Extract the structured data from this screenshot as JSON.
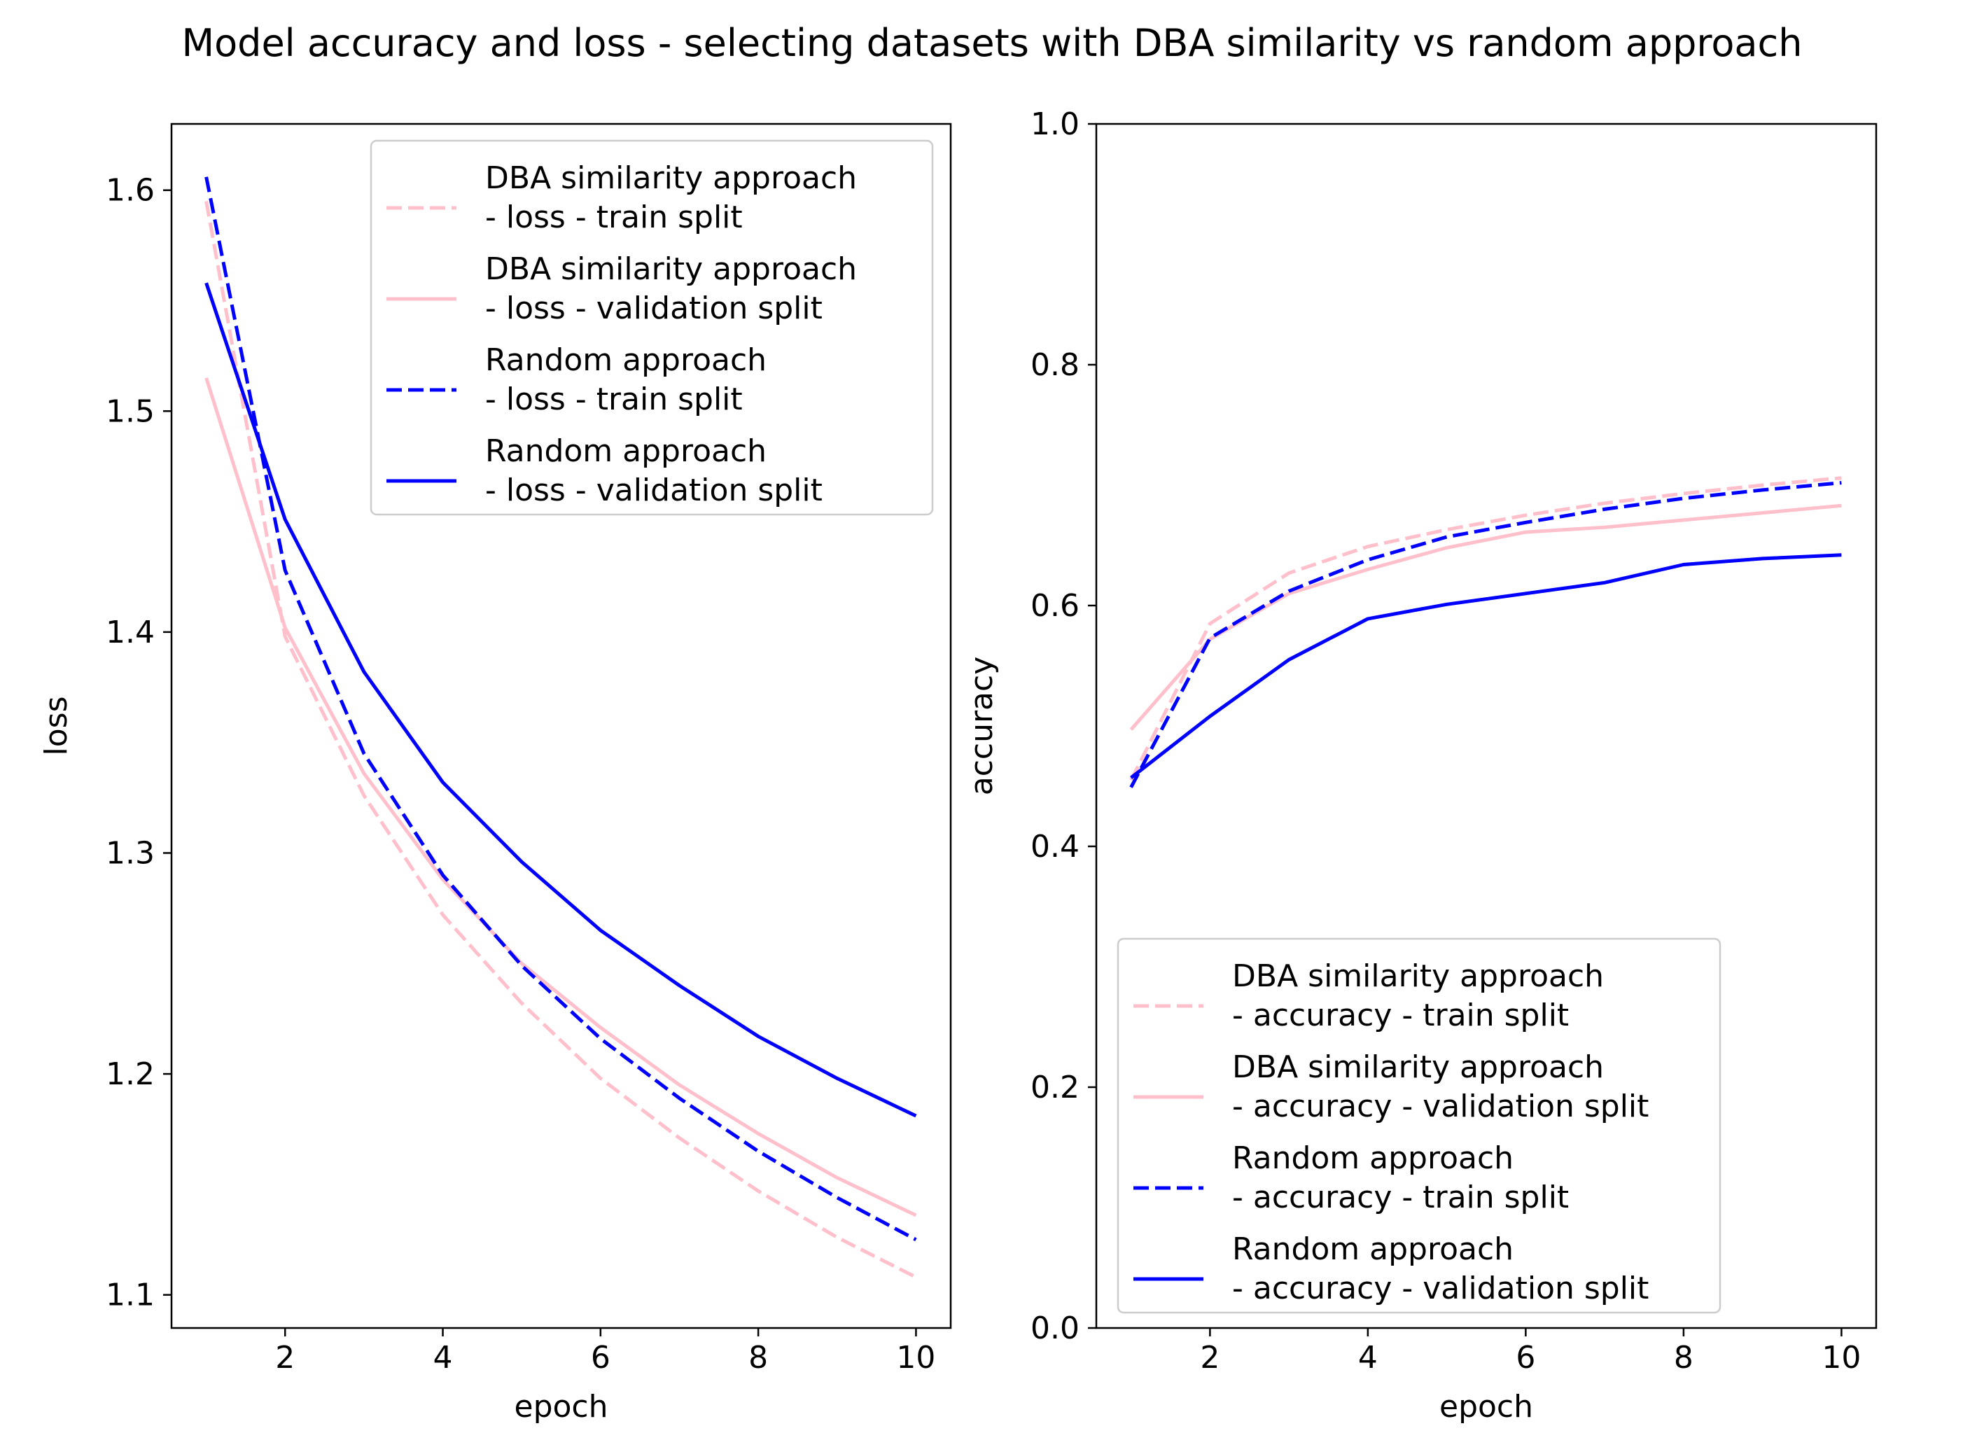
{
  "figure": {
    "title": "Model accuracy and loss - selecting datasets with DBA similarity vs random approach"
  },
  "chart_data": [
    {
      "type": "line",
      "xlabel": "epoch",
      "ylabel": "loss",
      "xlim": [
        0.56,
        10.44
      ],
      "ylim": [
        1.085,
        1.63
      ],
      "xticks": [
        2,
        4,
        6,
        8,
        10
      ],
      "yticks": [
        1.1,
        1.2,
        1.3,
        1.4,
        1.5,
        1.6
      ],
      "xtick_labels": [
        "2",
        "4",
        "6",
        "8",
        "10"
      ],
      "ytick_labels": [
        "1.1",
        "1.2",
        "1.3",
        "1.4",
        "1.5",
        "1.6"
      ],
      "grid": false,
      "legend_position": "upper right",
      "x": [
        1,
        2,
        3,
        4,
        5,
        6,
        7,
        8,
        9,
        10
      ],
      "series": [
        {
          "name": "DBA similarity approach\n- loss - train split",
          "color": "#ffc0cb",
          "style": "dashed",
          "values": [
            1.595,
            1.398,
            1.326,
            1.272,
            1.232,
            1.198,
            1.171,
            1.147,
            1.126,
            1.108
          ]
        },
        {
          "name": "DBA similarity approach\n- loss - validation split",
          "color": "#ffc0cb",
          "style": "solid",
          "values": [
            1.515,
            1.402,
            1.336,
            1.288,
            1.25,
            1.221,
            1.195,
            1.173,
            1.153,
            1.136
          ]
        },
        {
          "name": "Random approach\n- loss - train split",
          "color": "#0000ff",
          "style": "dashed",
          "values": [
            1.606,
            1.428,
            1.345,
            1.29,
            1.249,
            1.216,
            1.189,
            1.165,
            1.144,
            1.125
          ]
        },
        {
          "name": "Random approach\n- loss - validation split",
          "color": "#0000ff",
          "style": "solid",
          "values": [
            1.558,
            1.451,
            1.382,
            1.332,
            1.296,
            1.265,
            1.24,
            1.217,
            1.198,
            1.181
          ]
        }
      ]
    },
    {
      "type": "line",
      "xlabel": "epoch",
      "ylabel": "accuracy",
      "xlim": [
        0.56,
        10.44
      ],
      "ylim": [
        0.0,
        1.0
      ],
      "xticks": [
        2,
        4,
        6,
        8,
        10
      ],
      "yticks": [
        0.0,
        0.2,
        0.4,
        0.6,
        0.8,
        1.0
      ],
      "xtick_labels": [
        "2",
        "4",
        "6",
        "8",
        "10"
      ],
      "ytick_labels": [
        "0.0",
        "0.2",
        "0.4",
        "0.6",
        "0.8",
        "1.0"
      ],
      "grid": false,
      "legend_position": "lower right",
      "x": [
        1,
        2,
        3,
        4,
        5,
        6,
        7,
        8,
        9,
        10
      ],
      "series": [
        {
          "name": "DBA similarity approach\n- accuracy - train split",
          "color": "#ffc0cb",
          "style": "dashed",
          "values": [
            0.455,
            0.585,
            0.627,
            0.649,
            0.663,
            0.675,
            0.685,
            0.693,
            0.7,
            0.706
          ]
        },
        {
          "name": "DBA similarity approach\n- accuracy - validation split",
          "color": "#ffc0cb",
          "style": "solid",
          "values": [
            0.497,
            0.572,
            0.61,
            0.63,
            0.648,
            0.661,
            0.665,
            0.671,
            0.677,
            0.683
          ]
        },
        {
          "name": "Random approach\n- accuracy - train split",
          "color": "#0000ff",
          "style": "dashed",
          "values": [
            0.449,
            0.573,
            0.612,
            0.638,
            0.657,
            0.669,
            0.68,
            0.689,
            0.696,
            0.702
          ]
        },
        {
          "name": "Random approach\n- accuracy - validation split",
          "color": "#0000ff",
          "style": "solid",
          "values": [
            0.457,
            0.508,
            0.555,
            0.589,
            0.601,
            0.61,
            0.619,
            0.634,
            0.639,
            0.642
          ]
        }
      ]
    }
  ]
}
